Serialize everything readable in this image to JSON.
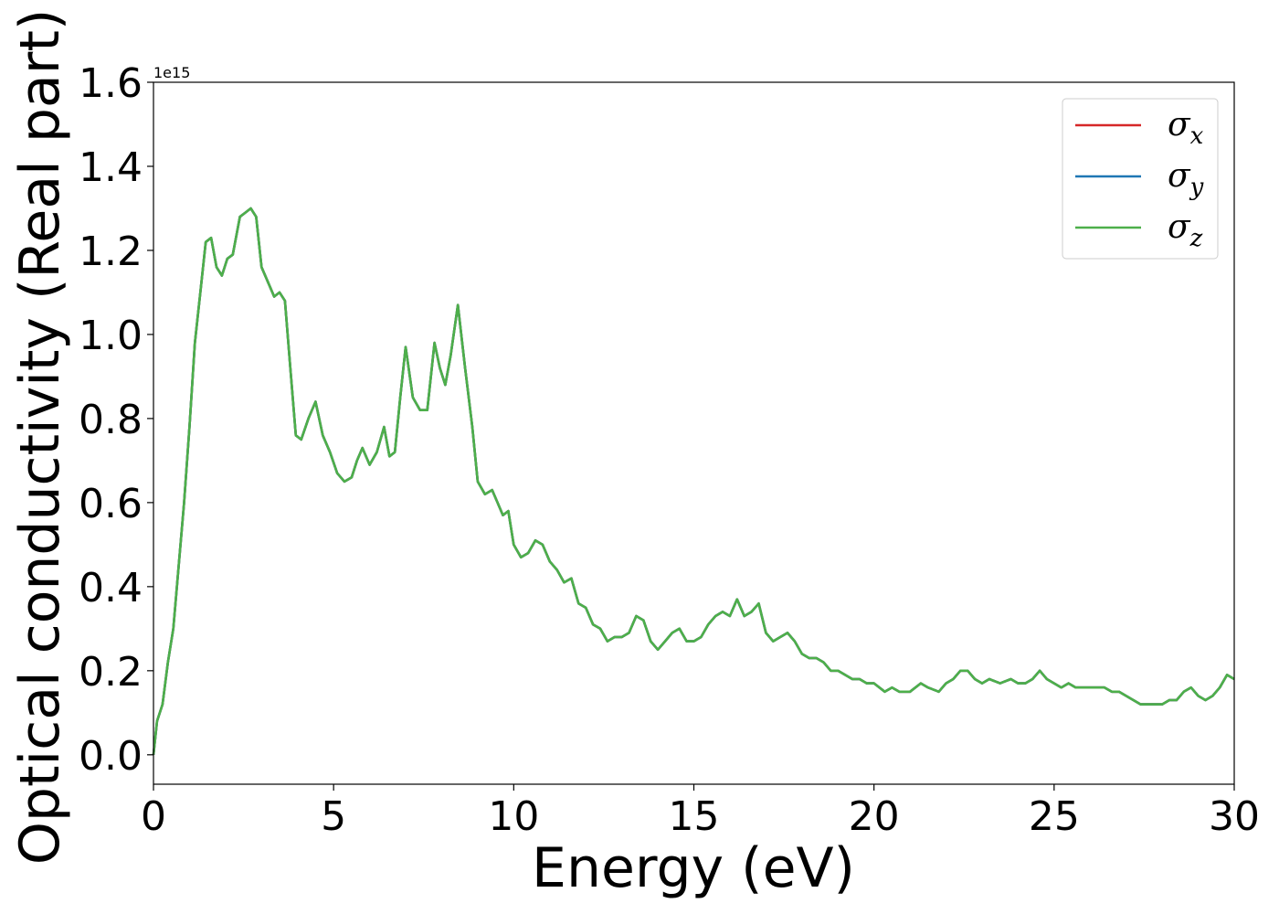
{
  "chart_data": {
    "type": "line",
    "title": "",
    "xlabel": "Energy (eV)",
    "ylabel": "Optical conductivity (Real part)",
    "y_offset_label": "1e15",
    "xlim": [
      0,
      30
    ],
    "ylim": [
      -0.07,
      1.6
    ],
    "xticks": [
      {
        "value": 0,
        "label": "0"
      },
      {
        "value": 5,
        "label": "5"
      },
      {
        "value": 10,
        "label": "10"
      },
      {
        "value": 15,
        "label": "15"
      },
      {
        "value": 20,
        "label": "20"
      },
      {
        "value": 25,
        "label": "25"
      },
      {
        "value": 30,
        "label": "30"
      }
    ],
    "yticks": [
      {
        "value": 0.0,
        "label": "0.0"
      },
      {
        "value": 0.2,
        "label": "0.2"
      },
      {
        "value": 0.4,
        "label": "0.4"
      },
      {
        "value": 0.6,
        "label": "0.6"
      },
      {
        "value": 0.8,
        "label": "0.8"
      },
      {
        "value": 1.0,
        "label": "1.0"
      },
      {
        "value": 1.2,
        "label": "1.2"
      },
      {
        "value": 1.4,
        "label": "1.4"
      },
      {
        "value": 1.6,
        "label": "1.6"
      }
    ],
    "grid": false,
    "legend_position": "top-right",
    "x": [
      0,
      0.1,
      0.25,
      0.4,
      0.55,
      0.7,
      0.85,
      1.0,
      1.15,
      1.3,
      1.45,
      1.6,
      1.75,
      1.9,
      2.05,
      2.2,
      2.4,
      2.55,
      2.7,
      2.85,
      3.0,
      3.2,
      3.35,
      3.5,
      3.65,
      3.8,
      3.95,
      4.1,
      4.3,
      4.5,
      4.7,
      4.9,
      5.1,
      5.3,
      5.5,
      5.65,
      5.8,
      6.0,
      6.2,
      6.4,
      6.55,
      6.7,
      6.85,
      7.0,
      7.2,
      7.4,
      7.6,
      7.8,
      7.95,
      8.1,
      8.25,
      8.45,
      8.65,
      8.85,
      9.0,
      9.2,
      9.4,
      9.55,
      9.7,
      9.85,
      10.0,
      10.2,
      10.4,
      10.6,
      10.8,
      11.0,
      11.2,
      11.4,
      11.6,
      11.8,
      12.0,
      12.2,
      12.4,
      12.6,
      12.8,
      13.0,
      13.2,
      13.4,
      13.6,
      13.8,
      14.0,
      14.2,
      14.4,
      14.6,
      14.8,
      15.0,
      15.2,
      15.4,
      15.6,
      15.8,
      16.0,
      16.2,
      16.4,
      16.6,
      16.8,
      17.0,
      17.2,
      17.4,
      17.6,
      17.8,
      18.0,
      18.2,
      18.4,
      18.6,
      18.8,
      19.0,
      19.2,
      19.4,
      19.6,
      19.8,
      20.0,
      20.3,
      20.5,
      20.7,
      21.0,
      21.3,
      21.5,
      21.8,
      22.0,
      22.2,
      22.4,
      22.6,
      22.8,
      23.0,
      23.2,
      23.5,
      23.8,
      24.0,
      24.2,
      24.4,
      24.6,
      24.8,
      25.0,
      25.2,
      25.4,
      25.6,
      25.8,
      26.0,
      26.2,
      26.4,
      26.6,
      26.8,
      27.0,
      27.2,
      27.4,
      27.6,
      27.8,
      28.0,
      28.2,
      28.4,
      28.6,
      28.8,
      29.0,
      29.2,
      29.4,
      29.6,
      29.8,
      30.0
    ],
    "series": [
      {
        "name": "σx",
        "symbol": "σ",
        "subscript": "x",
        "color": "#d62728",
        "values": null
      },
      {
        "name": "σy",
        "symbol": "σ",
        "subscript": "y",
        "color": "#1f77b4",
        "values": null
      },
      {
        "name": "σz",
        "symbol": "σ",
        "subscript": "z",
        "color": "#4daf4a",
        "values": [
          0.0,
          0.08,
          0.12,
          0.22,
          0.3,
          0.45,
          0.6,
          0.78,
          0.98,
          1.1,
          1.22,
          1.23,
          1.16,
          1.14,
          1.18,
          1.19,
          1.28,
          1.29,
          1.3,
          1.28,
          1.16,
          1.12,
          1.09,
          1.1,
          1.08,
          0.92,
          0.76,
          0.75,
          0.8,
          0.84,
          0.76,
          0.72,
          0.67,
          0.65,
          0.66,
          0.7,
          0.73,
          0.69,
          0.72,
          0.78,
          0.71,
          0.72,
          0.85,
          0.97,
          0.85,
          0.82,
          0.82,
          0.98,
          0.92,
          0.88,
          0.95,
          1.07,
          0.92,
          0.78,
          0.65,
          0.62,
          0.63,
          0.6,
          0.57,
          0.58,
          0.5,
          0.47,
          0.48,
          0.51,
          0.5,
          0.46,
          0.44,
          0.41,
          0.42,
          0.36,
          0.35,
          0.31,
          0.3,
          0.27,
          0.28,
          0.28,
          0.29,
          0.33,
          0.32,
          0.27,
          0.25,
          0.27,
          0.29,
          0.3,
          0.27,
          0.27,
          0.28,
          0.31,
          0.33,
          0.34,
          0.33,
          0.37,
          0.33,
          0.34,
          0.36,
          0.29,
          0.27,
          0.28,
          0.29,
          0.27,
          0.24,
          0.23,
          0.23,
          0.22,
          0.2,
          0.2,
          0.19,
          0.18,
          0.18,
          0.17,
          0.17,
          0.15,
          0.16,
          0.15,
          0.15,
          0.17,
          0.16,
          0.15,
          0.17,
          0.18,
          0.2,
          0.2,
          0.18,
          0.17,
          0.18,
          0.17,
          0.18,
          0.17,
          0.17,
          0.18,
          0.2,
          0.18,
          0.17,
          0.16,
          0.17,
          0.16,
          0.16,
          0.16,
          0.16,
          0.16,
          0.15,
          0.15,
          0.14,
          0.13,
          0.12,
          0.12,
          0.12,
          0.12,
          0.13,
          0.13,
          0.15,
          0.16,
          0.14,
          0.13,
          0.14,
          0.16,
          0.19,
          0.18
        ]
      }
    ]
  }
}
